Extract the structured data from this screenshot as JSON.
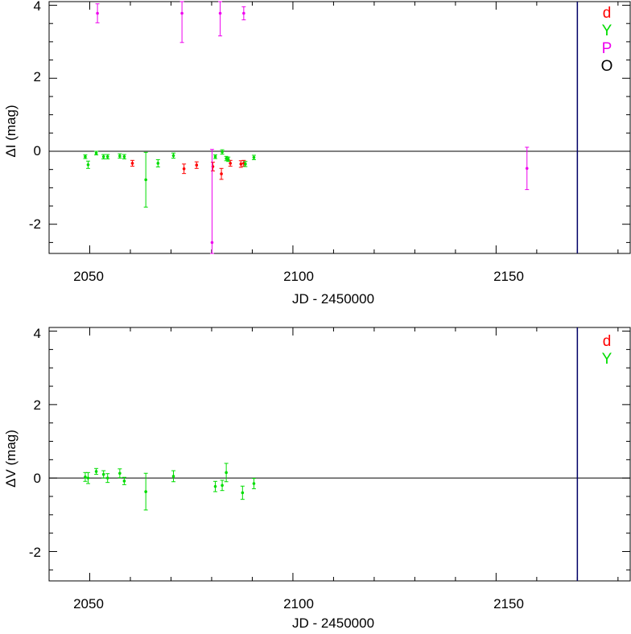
{
  "chart_data": [
    {
      "type": "scatter",
      "ylabel_symbol": "ΔI",
      "ylabel_unit": "(mag)",
      "xlabel": "JD - 2450000",
      "xlim": [
        2040,
        2183
      ],
      "ylim": [
        -2.8,
        4.1
      ],
      "x_ticks": [
        "2050",
        "2100",
        "2150"
      ],
      "y_ticks": [
        "4",
        "2",
        "0",
        "-2"
      ],
      "zero_line": 0,
      "vertical_marker_x": 2170,
      "legend": [
        {
          "label": "d",
          "color": "#ff0000"
        },
        {
          "label": "Y",
          "color": "#00dd00"
        },
        {
          "label": "P",
          "color": "#ee00ee"
        },
        {
          "label": "O",
          "color": "#000000"
        }
      ],
      "series": [
        {
          "name": "d",
          "color": "#ff0000",
          "points": [
            {
              "x": 2060.5,
              "y": -0.33,
              "err": 0.08
            },
            {
              "x": 2073.2,
              "y": -0.48,
              "err": 0.13
            },
            {
              "x": 2076.3,
              "y": -0.38,
              "err": 0.09
            },
            {
              "x": 2080.3,
              "y": -0.42,
              "err": 0.12
            },
            {
              "x": 2082.4,
              "y": -0.62,
              "err": 0.15
            },
            {
              "x": 2084.6,
              "y": -0.33,
              "err": 0.08
            },
            {
              "x": 2087.2,
              "y": -0.35,
              "err": 0.09
            },
            {
              "x": 2087.9,
              "y": -0.33,
              "err": 0.08
            }
          ]
        },
        {
          "name": "Y",
          "color": "#00dd00",
          "points": [
            {
              "x": 2048.9,
              "y": -0.15,
              "err": 0.05
            },
            {
              "x": 2049.6,
              "y": -0.37,
              "err": 0.1
            },
            {
              "x": 2051.6,
              "y": -0.05,
              "err": 0.05
            },
            {
              "x": 2053.4,
              "y": -0.15,
              "err": 0.06
            },
            {
              "x": 2054.4,
              "y": -0.15,
              "err": 0.06
            },
            {
              "x": 2057.4,
              "y": -0.13,
              "err": 0.06
            },
            {
              "x": 2058.5,
              "y": -0.15,
              "err": 0.06
            },
            {
              "x": 2063.8,
              "y": -0.78,
              "err": 0.75
            },
            {
              "x": 2066.8,
              "y": -0.33,
              "err": 0.1
            },
            {
              "x": 2070.6,
              "y": -0.12,
              "err": 0.07
            },
            {
              "x": 2080.9,
              "y": -0.15,
              "err": 0.05
            },
            {
              "x": 2082.6,
              "y": -0.02,
              "err": 0.06
            },
            {
              "x": 2083.6,
              "y": -0.2,
              "err": 0.06
            },
            {
              "x": 2084.1,
              "y": -0.22,
              "err": 0.06
            },
            {
              "x": 2088.3,
              "y": -0.35,
              "err": 0.07
            },
            {
              "x": 2090.4,
              "y": -0.17,
              "err": 0.06
            }
          ]
        },
        {
          "name": "P",
          "color": "#ee00ee",
          "points": [
            {
              "x": 2051.9,
              "y": 3.78,
              "err": 0.26
            },
            {
              "x": 2072.7,
              "y": 3.78,
              "err": 0.8
            },
            {
              "x": 2080.1,
              "y": -2.5,
              "err": 2.55
            },
            {
              "x": 2082.1,
              "y": 3.78,
              "err": 0.62
            },
            {
              "x": 2087.9,
              "y": 3.78,
              "err": 0.18
            },
            {
              "x": 2157.6,
              "y": -0.47,
              "err": 0.58
            }
          ]
        }
      ]
    },
    {
      "type": "scatter",
      "ylabel_symbol": "ΔV",
      "ylabel_unit": "(mag)",
      "xlabel": "JD - 2450000",
      "xlim": [
        2040,
        2183
      ],
      "ylim": [
        -2.8,
        4.1
      ],
      "x_ticks": [
        "2050",
        "2100",
        "2150"
      ],
      "y_ticks": [
        "4",
        "2",
        "0",
        "-2"
      ],
      "zero_line": 0,
      "vertical_marker_x": 2170,
      "legend": [
        {
          "label": "d",
          "color": "#ff0000"
        },
        {
          "label": "Y",
          "color": "#00dd00"
        }
      ],
      "series": [
        {
          "name": "Y",
          "color": "#00dd00",
          "points": [
            {
              "x": 2048.9,
              "y": 0.03,
              "err": 0.12
            },
            {
              "x": 2049.6,
              "y": 0.0,
              "err": 0.15
            },
            {
              "x": 2051.6,
              "y": 0.18,
              "err": 0.08
            },
            {
              "x": 2053.4,
              "y": 0.1,
              "err": 0.1
            },
            {
              "x": 2054.4,
              "y": 0.0,
              "err": 0.12
            },
            {
              "x": 2057.4,
              "y": 0.13,
              "err": 0.12
            },
            {
              "x": 2058.5,
              "y": -0.08,
              "err": 0.1
            },
            {
              "x": 2063.8,
              "y": -0.37,
              "err": 0.5
            },
            {
              "x": 2070.6,
              "y": 0.05,
              "err": 0.15
            },
            {
              "x": 2080.9,
              "y": -0.23,
              "err": 0.14
            },
            {
              "x": 2082.6,
              "y": -0.2,
              "err": 0.14
            },
            {
              "x": 2083.6,
              "y": 0.15,
              "err": 0.25
            },
            {
              "x": 2087.6,
              "y": -0.4,
              "err": 0.18
            },
            {
              "x": 2090.4,
              "y": -0.15,
              "err": 0.14
            }
          ]
        }
      ]
    }
  ]
}
